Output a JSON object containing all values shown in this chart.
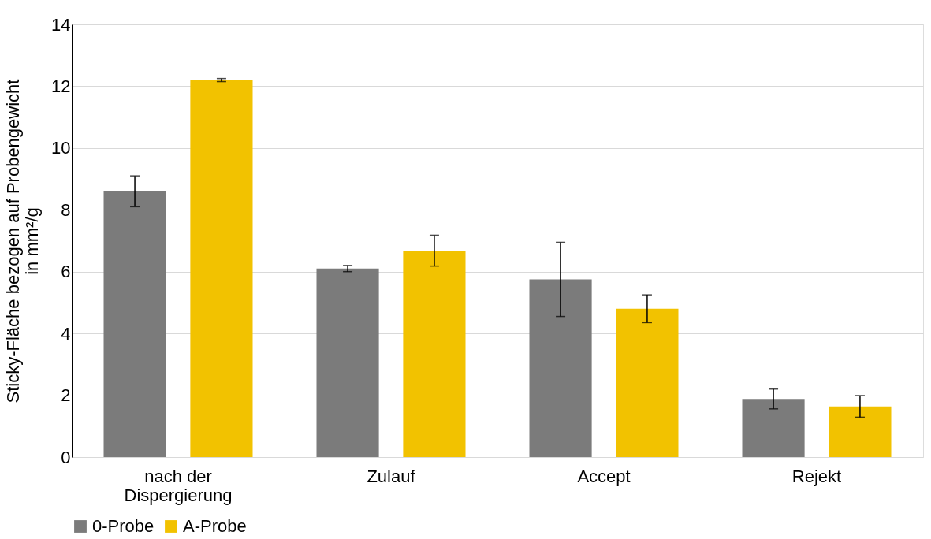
{
  "chart_data": {
    "type": "bar",
    "ylabel": "Sticky-Fläche bezogen auf Probengewicht\nin mm²/g",
    "categories": [
      "nach der\nDispergierung",
      "Zulauf",
      "Accept",
      "Rejekt"
    ],
    "series": [
      {
        "name": "0-Probe",
        "color": "#7b7b7b",
        "values": [
          8.6,
          6.1,
          5.75,
          1.88
        ],
        "errors": [
          0.5,
          0.1,
          1.2,
          0.32
        ]
      },
      {
        "name": "A-Probe",
        "color": "#f2c200",
        "values": [
          12.2,
          6.68,
          4.8,
          1.64
        ],
        "errors": [
          0.05,
          0.5,
          0.45,
          0.35
        ]
      }
    ],
    "ylim": [
      0,
      14
    ],
    "yticks": [
      0,
      2,
      4,
      6,
      8,
      10,
      12,
      14
    ],
    "grid": "y",
    "legend": "bottom"
  }
}
